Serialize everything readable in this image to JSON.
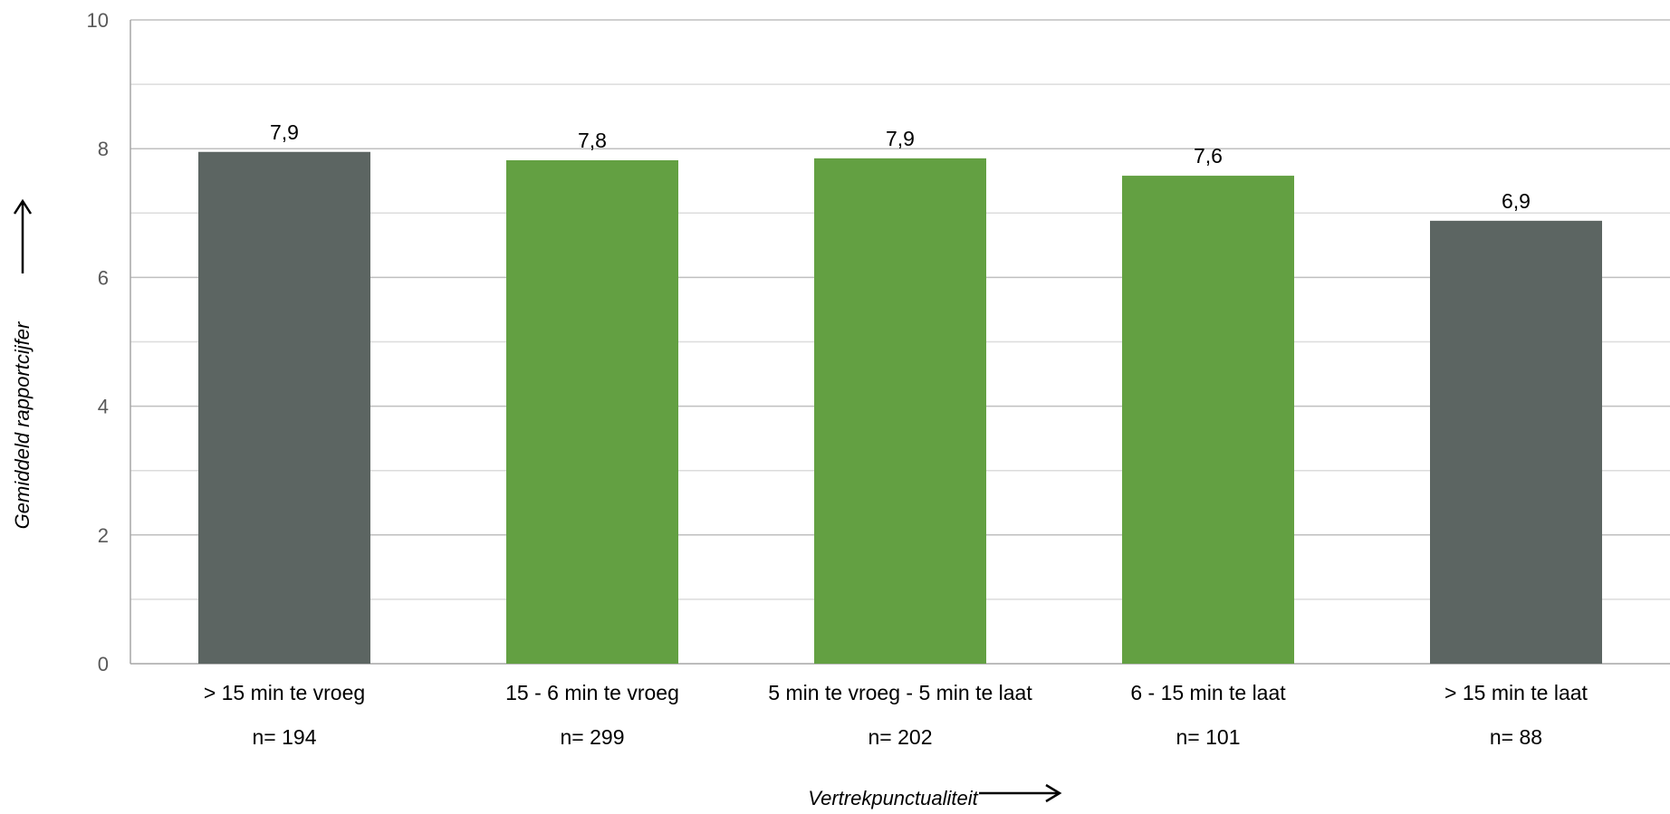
{
  "chart_data": {
    "type": "bar",
    "categories": [
      "> 15 min te vroeg",
      "15 - 6 min te vroeg",
      "5 min te vroeg - 5 min te laat",
      "6 - 15 min te laat",
      "> 15 min te laat"
    ],
    "values": [
      7.95,
      7.82,
      7.85,
      7.58,
      6.88
    ],
    "value_labels": [
      "7,9",
      "7,8",
      "7,9",
      "7,6",
      "6,9"
    ],
    "sample_sizes": [
      "n= 194",
      "n= 299",
      "n= 202",
      "n= 101",
      "n=  88"
    ],
    "bar_colors": [
      "#5c6562",
      "#63a042",
      "#63a042",
      "#63a042",
      "#5c6562"
    ],
    "xlabel": "Vertrekpunctualiteit",
    "ylabel": "Gemiddeld rapportcijfer",
    "ylim": [
      0,
      10
    ],
    "y_ticks": [
      0,
      2,
      4,
      6,
      8,
      10
    ],
    "y_tick_labels": [
      "0",
      "2",
      "4",
      "6",
      "8",
      "10"
    ],
    "grid": true,
    "minor_grid": true,
    "legend": "none"
  }
}
